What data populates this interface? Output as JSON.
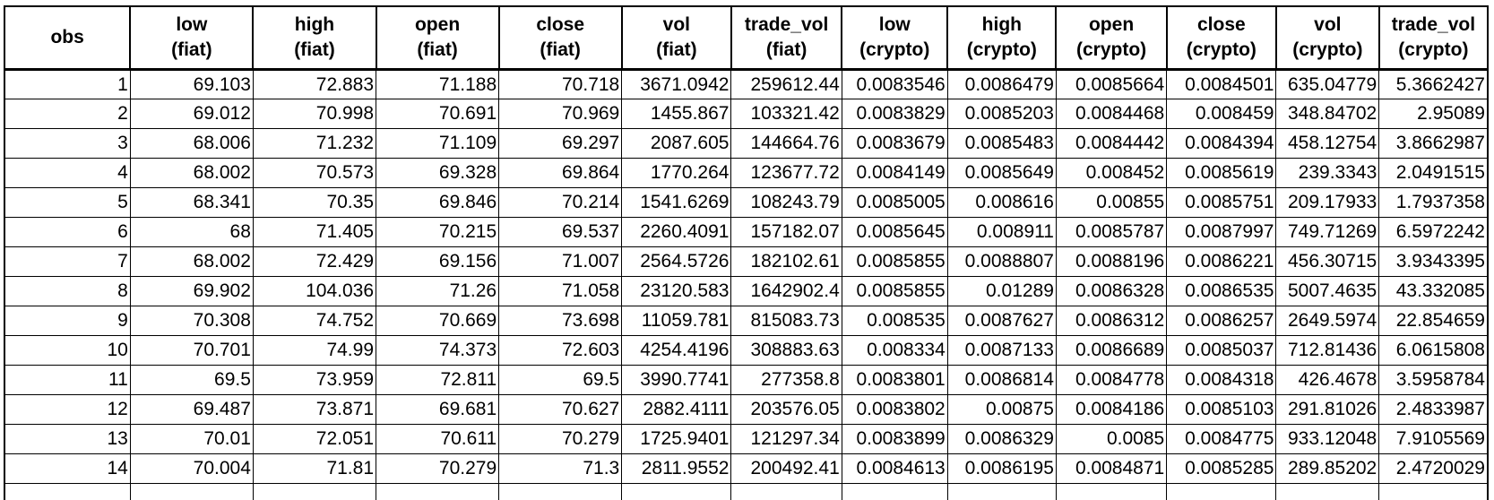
{
  "headers": [
    [
      "obs",
      ""
    ],
    [
      "low",
      "(fiat)"
    ],
    [
      "high",
      "(fiat)"
    ],
    [
      "open",
      "(fiat)"
    ],
    [
      "close",
      "(fiat)"
    ],
    [
      "vol",
      "(fiat)"
    ],
    [
      "trade_vol",
      "(fiat)"
    ],
    [
      "low",
      "(crypto)"
    ],
    [
      "high",
      "(crypto)"
    ],
    [
      "open",
      "(crypto)"
    ],
    [
      "close",
      "(crypto)"
    ],
    [
      "vol",
      "(crypto)"
    ],
    [
      "trade_vol",
      "(crypto)"
    ]
  ],
  "rows": [
    [
      "1",
      "69.103",
      "72.883",
      "71.188",
      "70.718",
      "3671.0942",
      "259612.44",
      "0.0083546",
      "0.0086479",
      "0.0085664",
      "0.0084501",
      "635.04779",
      "5.3662427"
    ],
    [
      "2",
      "69.012",
      "70.998",
      "70.691",
      "70.969",
      "1455.867",
      "103321.42",
      "0.0083829",
      "0.0085203",
      "0.0084468",
      "0.008459",
      "348.84702",
      "2.95089"
    ],
    [
      "3",
      "68.006",
      "71.232",
      "71.109",
      "69.297",
      "2087.605",
      "144664.76",
      "0.0083679",
      "0.0085483",
      "0.0084442",
      "0.0084394",
      "458.12754",
      "3.8662987"
    ],
    [
      "4",
      "68.002",
      "70.573",
      "69.328",
      "69.864",
      "1770.264",
      "123677.72",
      "0.0084149",
      "0.0085649",
      "0.008452",
      "0.0085619",
      "239.3343",
      "2.0491515"
    ],
    [
      "5",
      "68.341",
      "70.35",
      "69.846",
      "70.214",
      "1541.6269",
      "108243.79",
      "0.0085005",
      "0.008616",
      "0.00855",
      "0.0085751",
      "209.17933",
      "1.7937358"
    ],
    [
      "6",
      "68",
      "71.405",
      "70.215",
      "69.537",
      "2260.4091",
      "157182.07",
      "0.0085645",
      "0.008911",
      "0.0085787",
      "0.0087997",
      "749.71269",
      "6.5972242"
    ],
    [
      "7",
      "68.002",
      "72.429",
      "69.156",
      "71.007",
      "2564.5726",
      "182102.61",
      "0.0085855",
      "0.0088807",
      "0.0088196",
      "0.0086221",
      "456.30715",
      "3.9343395"
    ],
    [
      "8",
      "69.902",
      "104.036",
      "71.26",
      "71.058",
      "23120.583",
      "1642902.4",
      "0.0085855",
      "0.01289",
      "0.0086328",
      "0.0086535",
      "5007.4635",
      "43.332085"
    ],
    [
      "9",
      "70.308",
      "74.752",
      "70.669",
      "73.698",
      "11059.781",
      "815083.73",
      "0.008535",
      "0.0087627",
      "0.0086312",
      "0.0086257",
      "2649.5974",
      "22.854659"
    ],
    [
      "10",
      "70.701",
      "74.99",
      "74.373",
      "72.603",
      "4254.4196",
      "308883.63",
      "0.008334",
      "0.0087133",
      "0.0086689",
      "0.0085037",
      "712.81436",
      "6.0615808"
    ],
    [
      "11",
      "69.5",
      "73.959",
      "72.811",
      "69.5",
      "3990.7741",
      "277358.8",
      "0.0083801",
      "0.0086814",
      "0.0084778",
      "0.0084318",
      "426.4678",
      "3.5958784"
    ],
    [
      "12",
      "69.487",
      "73.871",
      "69.681",
      "70.627",
      "2882.4111",
      "203576.05",
      "0.0083802",
      "0.00875",
      "0.0084186",
      "0.0085103",
      "291.81026",
      "2.4833987"
    ],
    [
      "13",
      "70.01",
      "72.051",
      "70.611",
      "70.279",
      "1725.9401",
      "121297.34",
      "0.0083899",
      "0.0086329",
      "0.0085",
      "0.0084775",
      "933.12048",
      "7.9105569"
    ],
    [
      "14",
      "70.004",
      "71.81",
      "70.279",
      "71.3",
      "2811.9552",
      "200492.41",
      "0.0084613",
      "0.0086195",
      "0.0084871",
      "0.0085285",
      "289.85202",
      "2.4720029"
    ]
  ]
}
